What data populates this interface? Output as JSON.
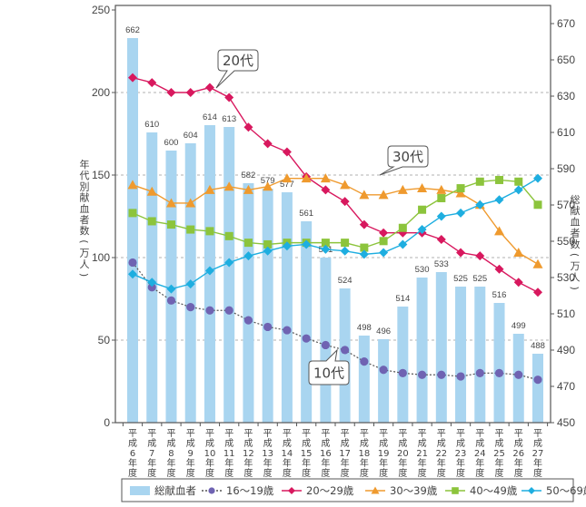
{
  "chart_data": {
    "type": "bar+line",
    "title": "",
    "categories": [
      "平成6年度",
      "平成7年度",
      "平成8年度",
      "平成9年度",
      "平成10年度",
      "平成11年度",
      "平成12年度",
      "平成13年度",
      "平成14年度",
      "平成15年度",
      "平成16年度",
      "平成17年度",
      "平成18年度",
      "平成19年度",
      "平成20年度",
      "平成21年度",
      "平成22年度",
      "平成23年度",
      "平成24年度",
      "平成25年度",
      "平成26年度",
      "平成27年度"
    ],
    "category_labels": [
      [
        "平",
        "成",
        "6",
        "年",
        "度"
      ],
      [
        "平",
        "成",
        "7",
        "年",
        "度"
      ],
      [
        "平",
        "成",
        "8",
        "年",
        "度"
      ],
      [
        "平",
        "成",
        "9",
        "年",
        "度"
      ],
      [
        "平",
        "成",
        "10",
        "年",
        "度"
      ],
      [
        "平",
        "成",
        "11",
        "年",
        "度"
      ],
      [
        "平",
        "成",
        "12",
        "年",
        "度"
      ],
      [
        "平",
        "成",
        "13",
        "年",
        "度"
      ],
      [
        "平",
        "成",
        "14",
        "年",
        "度"
      ],
      [
        "平",
        "成",
        "15",
        "年",
        "度"
      ],
      [
        "平",
        "成",
        "16",
        "年",
        "度"
      ],
      [
        "平",
        "成",
        "17",
        "年",
        "度"
      ],
      [
        "平",
        "成",
        "18",
        "年",
        "度"
      ],
      [
        "平",
        "成",
        "19",
        "年",
        "度"
      ],
      [
        "平",
        "成",
        "20",
        "年",
        "度"
      ],
      [
        "平",
        "成",
        "21",
        "年",
        "度"
      ],
      [
        "平",
        "成",
        "22",
        "年",
        "度"
      ],
      [
        "平",
        "成",
        "23",
        "年",
        "度"
      ],
      [
        "平",
        "成",
        "24",
        "年",
        "度"
      ],
      [
        "平",
        "成",
        "25",
        "年",
        "度"
      ],
      [
        "平",
        "成",
        "26",
        "年",
        "度"
      ],
      [
        "平",
        "成",
        "27",
        "年",
        "度"
      ]
    ],
    "ylabel_left": "年代別献血者数(万人)",
    "ylabel_right": "総献血者数(万人)",
    "ylim_left": [
      0,
      250
    ],
    "yticks_left": [
      0,
      50,
      100,
      150,
      200,
      250
    ],
    "ylim_right": [
      450,
      670
    ],
    "yticks_right": [
      450,
      470,
      490,
      510,
      530,
      550,
      570,
      590,
      610,
      630,
      650,
      670
    ],
    "grid": "dashed horizontal at left 50, 100, 150, 200",
    "bar_series": {
      "name": "総献血者",
      "axis": "right",
      "color": "#a9d5f0",
      "values": [
        662,
        610,
        600,
        604,
        614,
        613,
        582,
        579,
        577,
        561,
        541,
        524,
        498,
        496,
        514,
        530,
        533,
        525,
        525,
        516,
        499,
        488
      ]
    },
    "series": [
      {
        "name": "16〜19歳",
        "axis": "left",
        "color": "#6f63b2",
        "marker": "circle",
        "dash": true,
        "values": [
          97,
          82,
          74,
          70,
          68,
          68,
          62,
          58,
          56,
          51,
          47,
          44,
          37,
          32,
          30,
          29,
          29,
          28,
          30,
          30,
          29,
          26
        ]
      },
      {
        "name": "20〜29歳",
        "axis": "left",
        "color": "#d8185e",
        "marker": "diamond",
        "dash": false,
        "values": [
          209,
          206,
          200,
          200,
          203,
          197,
          179,
          169,
          164,
          149,
          141,
          134,
          120,
          115,
          115,
          115,
          111,
          103,
          101,
          93,
          85,
          79
        ]
      },
      {
        "name": "30〜39歳",
        "axis": "left",
        "color": "#ef9a2e",
        "marker": "triangle",
        "dash": false,
        "values": [
          144,
          140,
          133,
          133,
          141,
          143,
          141,
          143,
          148,
          148,
          148,
          144,
          138,
          138,
          141,
          142,
          141,
          139,
          132,
          116,
          103,
          96
        ]
      },
      {
        "name": "40〜49歳",
        "axis": "left",
        "color": "#8cc43c",
        "marker": "square",
        "dash": false,
        "values": [
          127,
          122,
          120,
          117,
          116,
          113,
          109,
          108,
          109,
          109,
          109,
          109,
          106,
          110,
          118,
          129,
          136,
          142,
          146,
          147,
          146,
          132
        ]
      },
      {
        "name": "50〜69歳",
        "axis": "left",
        "color": "#1eaee0",
        "marker": "diamond",
        "dash": false,
        "values": [
          90,
          85,
          81,
          84,
          92,
          97,
          101,
          104,
          107,
          108,
          105,
          104,
          102,
          103,
          108,
          117,
          125,
          127,
          132,
          135,
          141,
          148
        ]
      }
    ],
    "annotations": [
      {
        "text": "20代",
        "series": "20〜29歳",
        "points_to": "平成10年度"
      },
      {
        "text": "30代",
        "series": "30〜39歳",
        "points_to": "平成20年度"
      },
      {
        "text": "10代",
        "series": "16〜19歳",
        "points_to": "平成17年度"
      }
    ],
    "legend": {
      "position": "bottom",
      "items": [
        "総献血者",
        "16〜19歳",
        "20〜29歳",
        "30〜39歳",
        "40〜49歳",
        "50〜69歳"
      ]
    }
  }
}
